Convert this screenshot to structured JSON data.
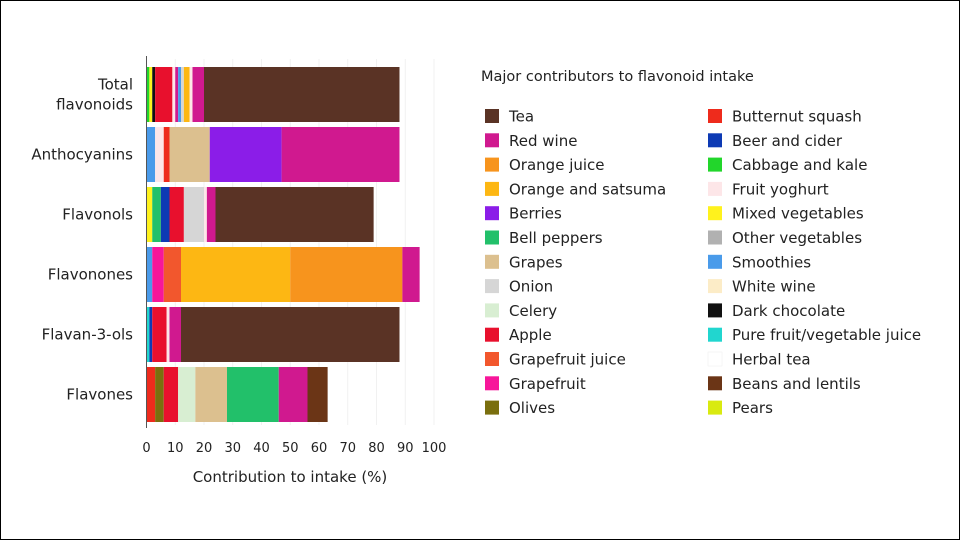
{
  "chart_data": {
    "type": "bar",
    "orientation": "horizontal",
    "stacked": true,
    "categories": [
      [
        "Total",
        "flavonoids"
      ],
      [
        "Anthocyanins"
      ],
      [
        "Flavonols"
      ],
      [
        "Flavonones"
      ],
      [
        "Flavan-3-ols"
      ],
      [
        "Flavones"
      ]
    ],
    "xlabel": "Contribution to intake (%)",
    "xlim": [
      0,
      100
    ],
    "xticks": [
      0,
      10,
      20,
      30,
      40,
      50,
      60,
      70,
      80,
      90,
      100
    ],
    "legend_title": "Major contributors to flavonoid intake",
    "legend_position": "right",
    "legend": [
      {
        "name": "Tea",
        "color": "#5a3325"
      },
      {
        "name": "Red wine",
        "color": "#d0198f"
      },
      {
        "name": "Orange juice",
        "color": "#f7941d"
      },
      {
        "name": "Orange and satsuma",
        "color": "#fdb713"
      },
      {
        "name": "Berries",
        "color": "#8b1de8"
      },
      {
        "name": "Bell peppers",
        "color": "#22c06a"
      },
      {
        "name": "Grapes",
        "color": "#dcc08f"
      },
      {
        "name": "Onion",
        "color": "#d6d6d6"
      },
      {
        "name": "Celery",
        "color": "#d8eed2"
      },
      {
        "name": "Apple",
        "color": "#e8102d"
      },
      {
        "name": "Grapefruit juice",
        "color": "#f2572d"
      },
      {
        "name": "Grapefruit",
        "color": "#f7169a"
      },
      {
        "name": "Olives",
        "color": "#7a6f0e"
      },
      {
        "name": "Butternut squash",
        "color": "#ee2b1c"
      },
      {
        "name": "Beer and cider",
        "color": "#0d3ab4"
      },
      {
        "name": "Cabbage and kale",
        "color": "#22d62b"
      },
      {
        "name": "Fruit yoghurt",
        "color": "#fde6e8"
      },
      {
        "name": "Mixed vegetables",
        "color": "#fff21d"
      },
      {
        "name": "Other vegetables",
        "color": "#b1b1b1"
      },
      {
        "name": "Smoothies",
        "color": "#4a9bea"
      },
      {
        "name": "White wine",
        "color": "#fcecc7"
      },
      {
        "name": "Dark chocolate",
        "color": "#111111"
      },
      {
        "name": "Pure fruit/vegetable juice",
        "color": "#21d6cf"
      },
      {
        "name": "Herbal tea",
        "color": "#ffffff"
      },
      {
        "name": "Beans and lentils",
        "color": "#6b3516"
      },
      {
        "name": "Pears",
        "color": "#d9ea10"
      }
    ],
    "series_by_category": [
      [
        {
          "name": "Cabbage and kale",
          "value": 1
        },
        {
          "name": "Mixed vegetables",
          "value": 1
        },
        {
          "name": "Dark chocolate",
          "value": 1
        },
        {
          "name": "Apple",
          "value": 6
        },
        {
          "name": "Fruit yoghurt",
          "value": 1
        },
        {
          "name": "Red wine",
          "value": 1
        },
        {
          "name": "Smoothies",
          "value": 1
        },
        {
          "name": "Onion",
          "value": 1
        },
        {
          "name": "Orange and satsuma",
          "value": 2
        },
        {
          "name": "Fruit yoghurt",
          "value": 1
        },
        {
          "name": "Red wine",
          "value": 4
        },
        {
          "name": "Tea",
          "value": 68
        }
      ],
      [
        {
          "name": "Smoothies",
          "value": 3
        },
        {
          "name": "Fruit yoghurt",
          "value": 3
        },
        {
          "name": "Butternut squash",
          "value": 2
        },
        {
          "name": "Grapes",
          "value": 14
        },
        {
          "name": "Berries",
          "value": 25
        },
        {
          "name": "Red wine",
          "value": 41
        }
      ],
      [
        {
          "name": "Mixed vegetables",
          "value": 2
        },
        {
          "name": "Bell peppers",
          "value": 3
        },
        {
          "name": "Beer and cider",
          "value": 3
        },
        {
          "name": "Apple",
          "value": 5
        },
        {
          "name": "Onion",
          "value": 7
        },
        {
          "name": "Fruit yoghurt",
          "value": 1
        },
        {
          "name": "Red wine",
          "value": 3
        },
        {
          "name": "Tea",
          "value": 55
        }
      ],
      [
        {
          "name": "Smoothies",
          "value": 2
        },
        {
          "name": "Grapefruit",
          "value": 4
        },
        {
          "name": "Grapefruit juice",
          "value": 6
        },
        {
          "name": "Orange and satsuma",
          "value": 38
        },
        {
          "name": "Orange juice",
          "value": 39
        },
        {
          "name": "Red wine",
          "value": 6
        }
      ],
      [
        {
          "name": "Pure fruit/vegetable juice",
          "value": 1
        },
        {
          "name": "Beer and cider",
          "value": 1
        },
        {
          "name": "Apple",
          "value": 5
        },
        {
          "name": "Fruit yoghurt",
          "value": 1
        },
        {
          "name": "Red wine",
          "value": 4
        },
        {
          "name": "Tea",
          "value": 76
        }
      ],
      [
        {
          "name": "Butternut squash",
          "value": 3
        },
        {
          "name": "Olives",
          "value": 3
        },
        {
          "name": "Apple",
          "value": 5
        },
        {
          "name": "Celery",
          "value": 6
        },
        {
          "name": "Grapes",
          "value": 11
        },
        {
          "name": "Bell peppers",
          "value": 18
        },
        {
          "name": "Red wine",
          "value": 10
        },
        {
          "name": "Beans and lentils",
          "value": 7
        }
      ]
    ]
  }
}
